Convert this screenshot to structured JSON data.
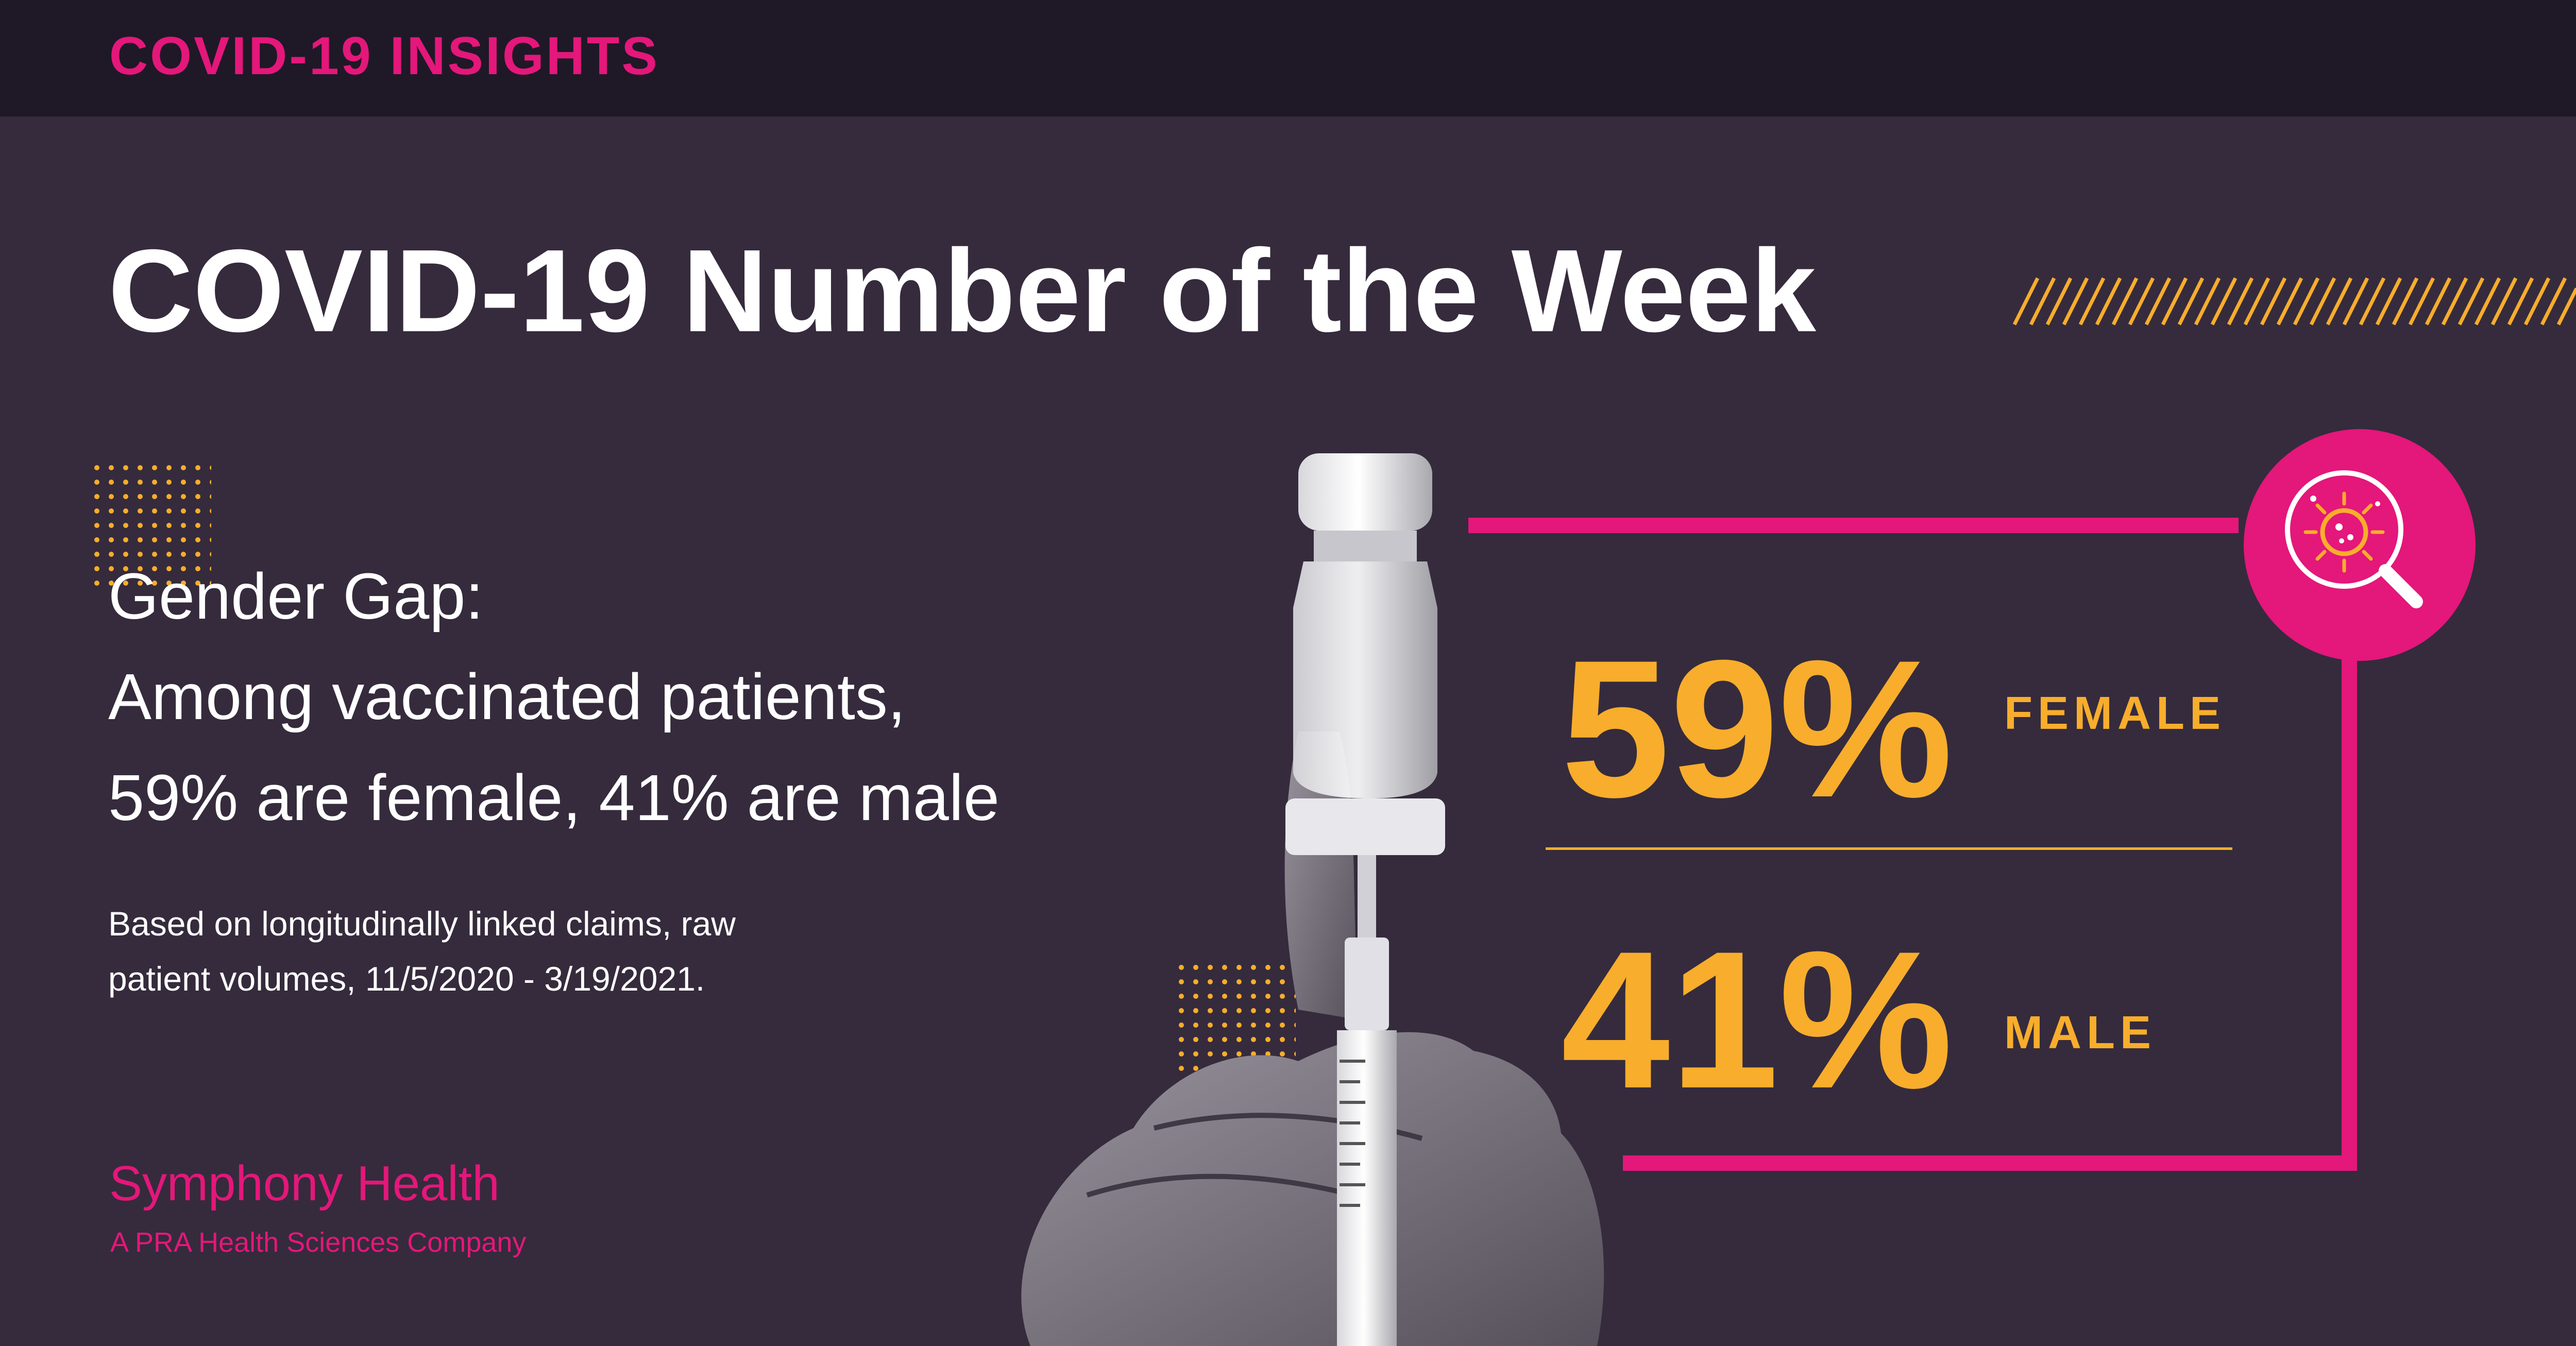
{
  "header": {
    "label": "COVID-19 INSIGHTS"
  },
  "title": "COVID-19 Number of the Week",
  "headline": {
    "line1": "Gender Gap:",
    "line2": "Among vaccinated patients,",
    "line3": "59% are female, 41% are male"
  },
  "footnote": {
    "line1": "Based on longitudinally linked claims, raw",
    "line2": "patient volumes, 11/5/2020 - 3/19/2021."
  },
  "brand": {
    "name": "Symphony Health",
    "tagline": "A PRA Health Sciences Company"
  },
  "stats": [
    {
      "value": "59%",
      "label": "FEMALE"
    },
    {
      "value": "41%",
      "label": "MALE"
    }
  ],
  "icons": [
    "vaccine-vial-hand-image",
    "virus-magnifier-icon"
  ],
  "colors": {
    "background": "#352b3c",
    "topbar": "#1f1827",
    "accent_pink": "#e4177a",
    "accent_orange": "#f8ad2c",
    "text": "#ffffff"
  }
}
